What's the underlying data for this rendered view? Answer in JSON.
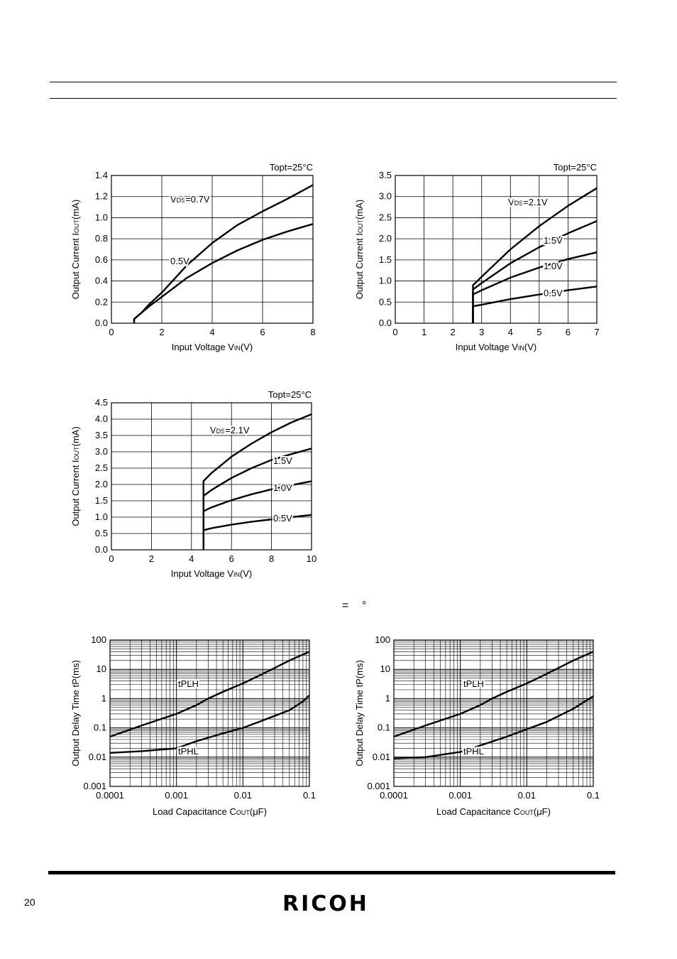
{
  "page": {
    "page_number": "20",
    "logo_text": "RICOH",
    "stray_equals": "=",
    "stray_degree": "°"
  },
  "chart_data": [
    {
      "type": "line",
      "condition": "Topt=25°C",
      "xlabel": "Input Voltage VIN(V)",
      "ylabel": "Output Current IOUT(mA)",
      "xlim": [
        0,
        8
      ],
      "ylim": [
        0,
        1.4
      ],
      "xticks": [
        "0",
        "2",
        "4",
        "6",
        "8"
      ],
      "yticks": [
        "0.0",
        "0.2",
        "0.4",
        "0.6",
        "0.8",
        "1.0",
        "1.2",
        "1.4"
      ],
      "grid": true,
      "series": [
        {
          "name": "VDS=0.7V",
          "x": [
            0.9,
            0.9,
            1.2,
            1.5,
            2,
            3,
            4,
            5,
            6,
            7,
            8
          ],
          "y": [
            0,
            0.04,
            0.1,
            0.18,
            0.29,
            0.55,
            0.76,
            0.93,
            1.06,
            1.18,
            1.31
          ]
        },
        {
          "name": "0.5V",
          "x": [
            0.9,
            0.9,
            1.2,
            1.5,
            2,
            3,
            4,
            5,
            6,
            7,
            8
          ],
          "y": [
            0,
            0.04,
            0.1,
            0.16,
            0.25,
            0.43,
            0.57,
            0.69,
            0.79,
            0.87,
            0.94
          ]
        }
      ]
    },
    {
      "type": "line",
      "condition": "Topt=25°C",
      "xlabel": "Input Voltage VIN(V)",
      "ylabel": "Output Current IOUT(mA)",
      "xlim": [
        0,
        7
      ],
      "ylim": [
        0,
        3.5
      ],
      "xticks": [
        "0",
        "1",
        "2",
        "3",
        "4",
        "5",
        "6",
        "7"
      ],
      "yticks": [
        "0.0",
        "0.5",
        "1.0",
        "1.5",
        "2.0",
        "2.5",
        "3.0",
        "3.5"
      ],
      "grid": true,
      "series": [
        {
          "name": "VDS=2.1V",
          "x": [
            2.7,
            2.7,
            3,
            4,
            5,
            6,
            7
          ],
          "y": [
            0,
            0.9,
            1.1,
            1.75,
            2.3,
            2.78,
            3.2
          ]
        },
        {
          "name": "1.5V",
          "x": [
            2.7,
            2.7,
            3,
            4,
            5,
            6,
            7
          ],
          "y": [
            0,
            0.8,
            0.95,
            1.42,
            1.8,
            2.13,
            2.42
          ]
        },
        {
          "name": "1.0V",
          "x": [
            2.7,
            2.7,
            3,
            4,
            5,
            6,
            7
          ],
          "y": [
            0,
            0.68,
            0.78,
            1.08,
            1.32,
            1.52,
            1.68
          ]
        },
        {
          "name": "0.5V",
          "x": [
            2.7,
            2.7,
            3,
            4,
            5,
            6,
            7
          ],
          "y": [
            0,
            0.4,
            0.44,
            0.57,
            0.68,
            0.78,
            0.87
          ]
        }
      ]
    },
    {
      "type": "line",
      "condition": "Topt=25°C",
      "xlabel": "Input Voltage VIN(V)",
      "ylabel": "Output Current IOUT(mA)",
      "xlim": [
        0,
        10
      ],
      "ylim": [
        0,
        4.5
      ],
      "xticks": [
        "0",
        "2",
        "4",
        "6",
        "8",
        "10"
      ],
      "yticks": [
        "0.0",
        "0.5",
        "1.0",
        "1.5",
        "2.0",
        "2.5",
        "3.0",
        "3.5",
        "4.0",
        "4.5"
      ],
      "grid": true,
      "series": [
        {
          "name": "VDS=2.1V",
          "x": [
            4.6,
            4.6,
            5,
            6,
            7,
            8,
            9,
            10
          ],
          "y": [
            0,
            2.1,
            2.35,
            2.85,
            3.25,
            3.6,
            3.9,
            4.15
          ]
        },
        {
          "name": "1.5V",
          "x": [
            4.6,
            4.6,
            5,
            6,
            7,
            8,
            9,
            10
          ],
          "y": [
            0,
            1.65,
            1.83,
            2.2,
            2.5,
            2.75,
            2.93,
            3.1
          ]
        },
        {
          "name": "1.0V",
          "x": [
            4.6,
            4.6,
            5,
            6,
            7,
            8,
            9,
            10
          ],
          "y": [
            0,
            1.18,
            1.3,
            1.52,
            1.7,
            1.85,
            1.98,
            2.1
          ]
        },
        {
          "name": "0.5V",
          "x": [
            4.6,
            4.6,
            5,
            6,
            7,
            8,
            9,
            10
          ],
          "y": [
            0,
            0.6,
            0.66,
            0.77,
            0.86,
            0.93,
            1.0,
            1.07
          ]
        }
      ]
    },
    {
      "type": "line",
      "log_x": true,
      "log_y": true,
      "xlabel": "Load Capacitance COUT(μF)",
      "ylabel": "Output Delay Time tP(ms)",
      "xlim": [
        0.0001,
        0.1
      ],
      "ylim": [
        0.001,
        100
      ],
      "xticks": [
        "0.0001",
        "0.001",
        "0.01",
        "0.1"
      ],
      "yticks": [
        "0.001",
        "0.01",
        "0.1",
        "1",
        "10",
        "100"
      ],
      "grid": true,
      "series": [
        {
          "name": "tPLH",
          "x": [
            0.0001,
            0.0003,
            0.001,
            0.002,
            0.003,
            0.005,
            0.01,
            0.02,
            0.05,
            0.1
          ],
          "y": [
            0.05,
            0.12,
            0.3,
            0.6,
            1.0,
            1.7,
            3.3,
            7,
            20,
            40
          ]
        },
        {
          "name": "tPHL",
          "x": [
            0.0001,
            0.0003,
            0.001,
            0.002,
            0.005,
            0.01,
            0.02,
            0.05,
            0.08,
            0.1
          ],
          "y": [
            0.014,
            0.016,
            0.02,
            0.035,
            0.065,
            0.1,
            0.18,
            0.4,
            0.8,
            1.3
          ]
        }
      ]
    },
    {
      "type": "line",
      "log_x": true,
      "log_y": true,
      "xlabel": "Load Capacitance COUT(μF)",
      "ylabel": "Output Delay Time tP(ms)",
      "xlim": [
        0.0001,
        0.1
      ],
      "ylim": [
        0.001,
        100
      ],
      "xticks": [
        "0.0001",
        "0.001",
        "0.01",
        "0.1"
      ],
      "yticks": [
        "0.001",
        "0.01",
        "0.1",
        "1",
        "10",
        "100"
      ],
      "grid": true,
      "series": [
        {
          "name": "tPLH",
          "x": [
            0.0001,
            0.0003,
            0.001,
            0.002,
            0.003,
            0.005,
            0.01,
            0.02,
            0.05,
            0.1
          ],
          "y": [
            0.05,
            0.12,
            0.3,
            0.6,
            1.0,
            1.7,
            3.3,
            7,
            20,
            40
          ]
        },
        {
          "name": "tPHL",
          "x": [
            0.0001,
            0.0003,
            0.001,
            0.002,
            0.005,
            0.01,
            0.02,
            0.05,
            0.1
          ],
          "y": [
            0.009,
            0.01,
            0.015,
            0.025,
            0.05,
            0.09,
            0.16,
            0.45,
            1.2
          ]
        }
      ]
    }
  ]
}
